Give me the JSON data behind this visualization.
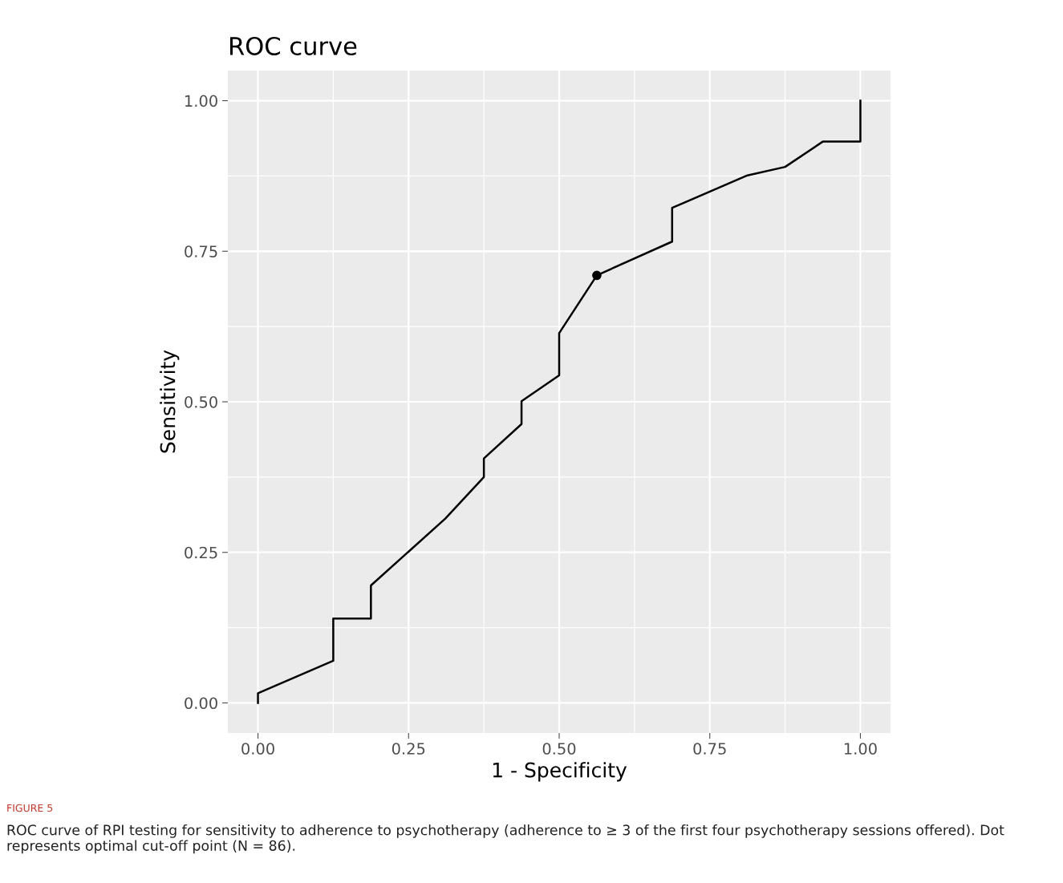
{
  "chart_data": {
    "type": "line",
    "title": "ROC curve",
    "xlabel": "1 - Specificity",
    "ylabel": "Sensitivity",
    "xlim": [
      -0.05,
      1.05
    ],
    "ylim": [
      -0.05,
      1.05
    ],
    "xticks": [
      {
        "value": 0,
        "label": "0.00"
      },
      {
        "value": 0.25,
        "label": "0.25"
      },
      {
        "value": 0.5,
        "label": "0.50"
      },
      {
        "value": 0.75,
        "label": "0.75"
      },
      {
        "value": 1,
        "label": "1.00"
      }
    ],
    "yticks": [
      {
        "value": 0,
        "label": "0.00"
      },
      {
        "value": 0.25,
        "label": "0.25"
      },
      {
        "value": 0.5,
        "label": "0.50"
      },
      {
        "value": 0.75,
        "label": "0.75"
      },
      {
        "value": 1,
        "label": "1.00"
      }
    ],
    "grid": true,
    "series": [
      {
        "color": "#000000",
        "marker": "none",
        "line_style": "solid",
        "x": [
          0,
          0,
          0.125,
          0.125,
          0.1875,
          0.1875,
          0.311,
          0.375,
          0.375,
          0.4375,
          0.4375,
          0.5,
          0.5,
          0.5625,
          0.6875,
          0.6875,
          0.8125,
          0.875,
          0.9375,
          1,
          1
        ],
        "values": [
          0,
          0.016,
          0.07,
          0.14,
          0.14,
          0.195,
          0.306,
          0.375,
          0.406,
          0.463,
          0.501,
          0.544,
          0.614,
          0.71,
          0.766,
          0.822,
          0.876,
          0.89,
          0.932,
          0.932,
          1
        ]
      },
      {
        "type": "scatter",
        "color": "#000000",
        "marker": "circle",
        "x": [
          0.5625
        ],
        "values": [
          0.71
        ]
      }
    ],
    "annotations": [
      "FIGURE 5",
      "ROC curve of RPI testing for sensitivity to adherence to psychotherapy (adherence to ≥ 3 of the first four psychotherapy sessions offered). Dot represents optimal cut-off point (N = 86)."
    ]
  }
}
